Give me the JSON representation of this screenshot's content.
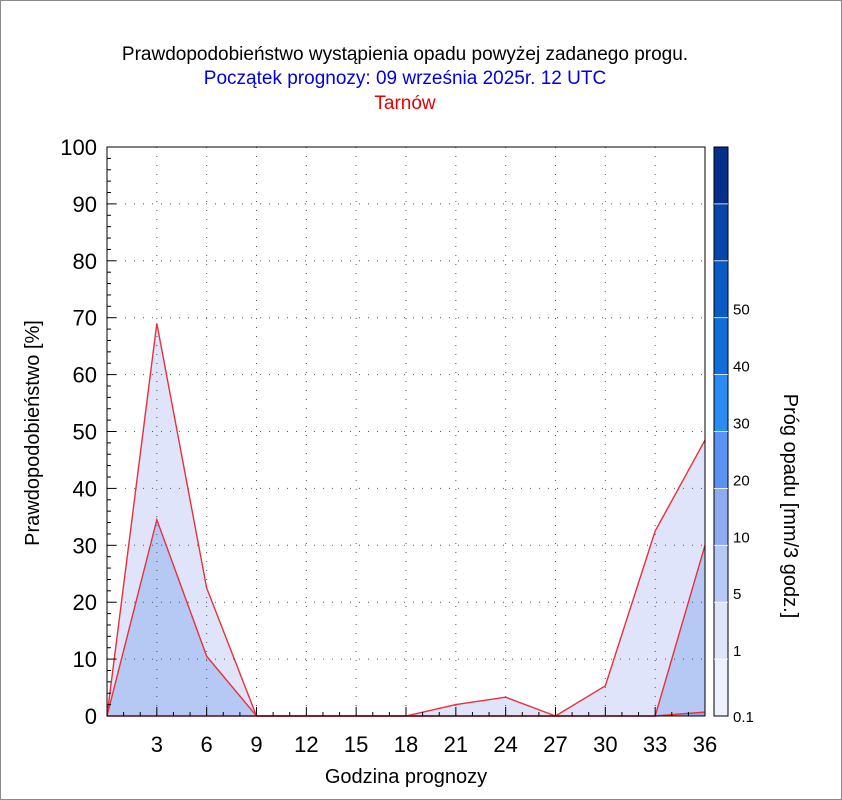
{
  "titles": {
    "line1": "Prawdopodobieństwo wystąpienia opadu powyżej zadanego progu.",
    "line2": "Początek prognozy: 09 września 2025r. 12 UTC",
    "line3": "Tarnów"
  },
  "chart_data": {
    "type": "area",
    "xlabel": "Godzina prognozy",
    "ylabel": "Prawdopodobieństwo [%]",
    "xlim": [
      0,
      36
    ],
    "ylim": [
      0,
      100
    ],
    "x_ticks": [
      3,
      6,
      9,
      12,
      15,
      18,
      21,
      24,
      27,
      30,
      33,
      36
    ],
    "y_ticks": [
      0,
      10,
      20,
      30,
      40,
      50,
      60,
      70,
      80,
      90,
      100
    ],
    "grid": true,
    "x": [
      0,
      3,
      6,
      9,
      12,
      15,
      18,
      21,
      24,
      27,
      30,
      33,
      36
    ],
    "series": [
      {
        "name": "0.1",
        "color": "#dfe4fb",
        "values": [
          0,
          69,
          22.5,
          0,
          0,
          0,
          0,
          2,
          3.3,
          0,
          5.3,
          32.5,
          48.5
        ]
      },
      {
        "name": "1",
        "color": "#b6c8f4",
        "values": [
          0,
          34.5,
          10.5,
          0,
          0,
          0,
          0,
          0,
          0,
          0,
          0,
          0,
          30
        ]
      },
      {
        "name": "5",
        "color": "#8eaaf0",
        "values": [
          0,
          0,
          0,
          0,
          0,
          0,
          0,
          0,
          0,
          0,
          0,
          0,
          0.7
        ]
      }
    ],
    "line_color": "#e8303a",
    "colorbar": {
      "label": "Próg opadu [mm/3 godz.]",
      "tick_labels": [
        "0.1",
        "1",
        "5",
        "10",
        "20",
        "30",
        "40",
        "50"
      ],
      "colors": [
        "#edf0fd",
        "#dfe4fb",
        "#b6c8f4",
        "#8eaaf0",
        "#5b91f0",
        "#2b8cf2",
        "#0f6ed8",
        "#0a5bc4",
        "#0747aa",
        "#052f8a"
      ]
    }
  }
}
